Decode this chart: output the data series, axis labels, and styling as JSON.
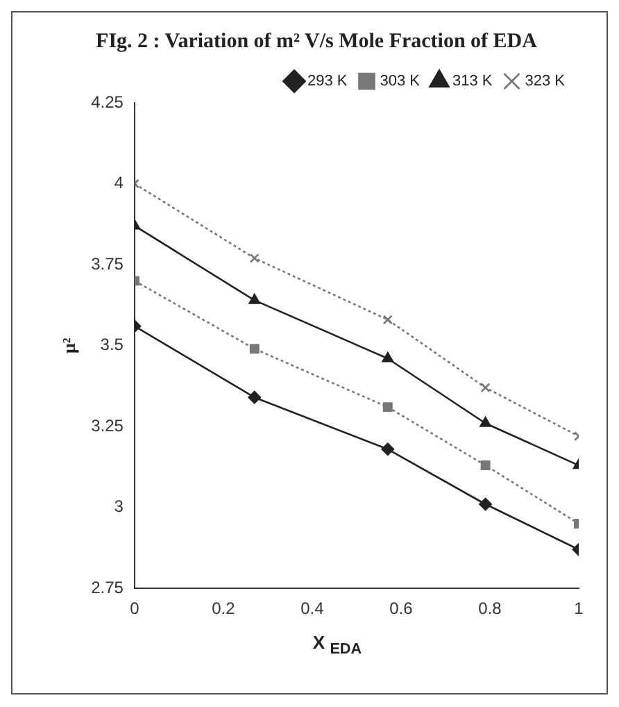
{
  "chart_data": {
    "type": "line",
    "title": "FIg. 2 : Variation of m² V/s Mole Fraction of EDA",
    "xlabel": "X $_{EDA}$",
    "ylabel": "μ²",
    "x": [
      0,
      0.27,
      0.57,
      0.79,
      1
    ],
    "xlim": [
      0,
      1
    ],
    "xticks": [
      0,
      {
        "value": 0.2,
        "label": "0.2"
      },
      {
        "value": 0.4,
        "label": "0.4"
      },
      {
        "value": 0.6,
        "label": "0.6"
      },
      {
        "value": 0.8,
        "label": "0.8"
      },
      1
    ],
    "ylim": [
      2.75,
      4.25
    ],
    "yticks": [
      2.75,
      3,
      3.25,
      3.5,
      3.75,
      4,
      4.25
    ],
    "grid": false,
    "legend": "top right",
    "series": [
      {
        "name": "293 K",
        "color": "#222222",
        "marker": "diamond",
        "line_style": "solid",
        "values": [
          3.56,
          3.34,
          3.18,
          3.01,
          2.87
        ]
      },
      {
        "name": "303 K",
        "color": "#777777",
        "marker": "square",
        "line_style": "dotted",
        "values": [
          3.7,
          3.49,
          3.31,
          3.13,
          2.95
        ]
      },
      {
        "name": "313 K",
        "color": "#222222",
        "marker": "triangle",
        "line_style": "solid",
        "values": [
          3.87,
          3.64,
          3.46,
          3.26,
          3.13
        ]
      },
      {
        "name": "323 K",
        "color": "#777777",
        "marker": "cross",
        "line_style": "dotted",
        "values": [
          4.0,
          3.77,
          3.58,
          3.37,
          3.22
        ]
      }
    ]
  }
}
